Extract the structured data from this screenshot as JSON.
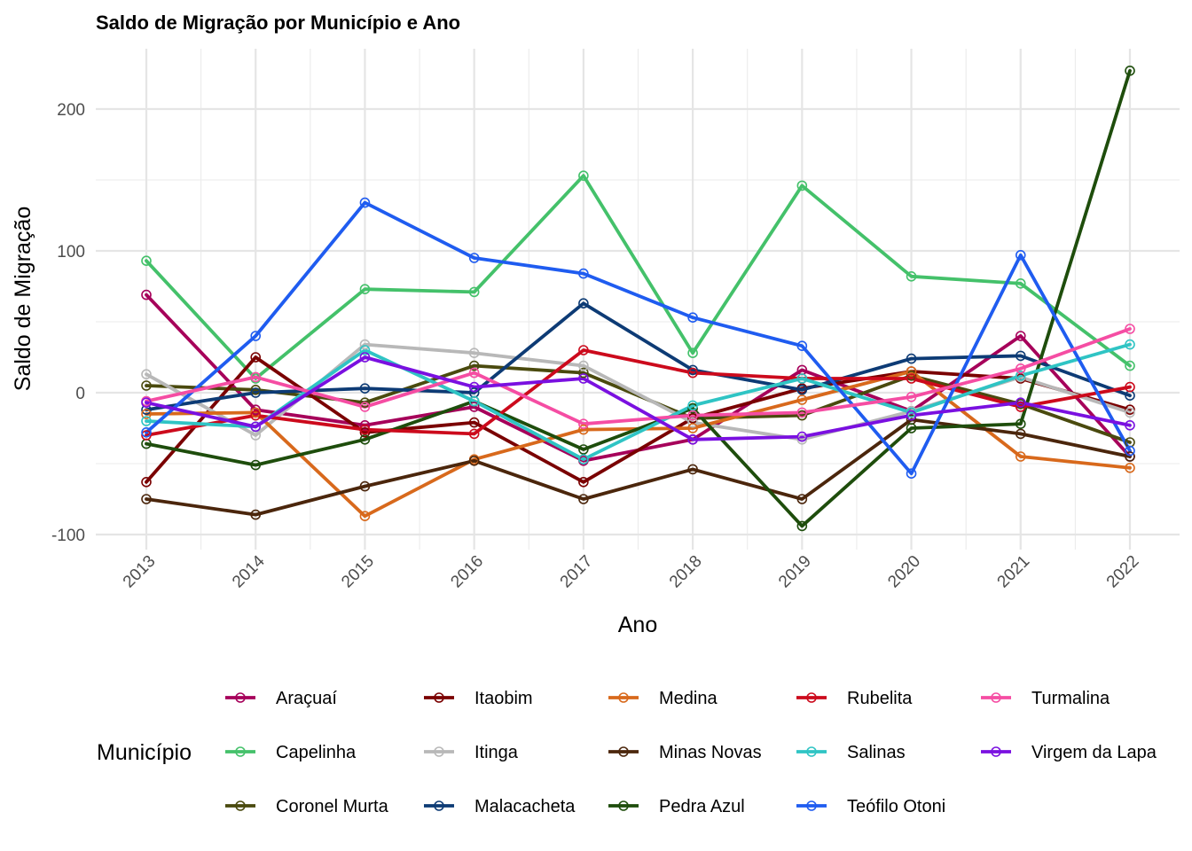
{
  "chart_data": {
    "type": "line",
    "title": "Saldo de Migração por Município e Ano",
    "xlabel": "Ano",
    "ylabel": "Saldo de Migração",
    "x": [
      2013,
      2014,
      2015,
      2016,
      2017,
      2018,
      2019,
      2020,
      2021,
      2022
    ],
    "x_tick_labels": [
      "2013",
      "2014",
      "2015",
      "2016",
      "2017",
      "2018",
      "2019",
      "2020",
      "2021",
      "2022"
    ],
    "y_ticks": [
      -100,
      0,
      100,
      200
    ],
    "y_tick_labels": [
      "-100",
      "0",
      "100",
      "200"
    ],
    "ylim": [
      -112,
      242
    ],
    "grid": true,
    "legend_title": "Município",
    "legend_position": "bottom",
    "series": [
      {
        "name": "Araçuaí",
        "color": "#A6005A",
        "values": [
          69,
          -12,
          -23,
          -10,
          -48,
          -33,
          16,
          -13,
          40,
          -45
        ]
      },
      {
        "name": "Capelinha",
        "color": "#44C16A",
        "values": [
          93,
          10,
          73,
          71,
          153,
          28,
          146,
          82,
          77,
          19
        ]
      },
      {
        "name": "Coronel Murta",
        "color": "#4A4A0E",
        "values": [
          5,
          2,
          -7,
          19,
          14,
          -18,
          -16,
          12,
          -8,
          -35
        ]
      },
      {
        "name": "Itaobim",
        "color": "#7A0000",
        "values": [
          -63,
          25,
          -28,
          -21,
          -63,
          -18,
          3,
          15,
          10,
          -12
        ]
      },
      {
        "name": "Itinga",
        "color": "#B8B8B8",
        "values": [
          13,
          -30,
          34,
          28,
          19,
          -21,
          -33,
          -13,
          11,
          -14
        ]
      },
      {
        "name": "Malacacheta",
        "color": "#0D3B75",
        "values": [
          -12,
          0,
          3,
          0,
          63,
          16,
          2,
          24,
          26,
          -2
        ]
      },
      {
        "name": "Medina",
        "color": "#D8691C",
        "values": [
          -15,
          -14,
          -87,
          -47,
          -26,
          -25,
          -5,
          15,
          -45,
          -53
        ]
      },
      {
        "name": "Minas Novas",
        "color": "#4B260C",
        "values": [
          -75,
          -86,
          -66,
          -48,
          -75,
          -54,
          -75,
          -19,
          -29,
          -45
        ]
      },
      {
        "name": "Pedra Azul",
        "color": "#1E4D0C",
        "values": [
          -36,
          -51,
          -33,
          -6,
          -40,
          -11,
          -94,
          -25,
          -22,
          227
        ]
      },
      {
        "name": "Rubelita",
        "color": "#CC0A1C",
        "values": [
          -30,
          -16,
          -26,
          -29,
          30,
          14,
          10,
          10,
          -10,
          4
        ]
      },
      {
        "name": "Salinas",
        "color": "#2FC4C4",
        "values": [
          -20,
          -24,
          30,
          -6,
          -47,
          -9,
          10,
          -14,
          12,
          34
        ]
      },
      {
        "name": "Teófilo Otoni",
        "color": "#1F5CF0",
        "values": [
          -28,
          40,
          134,
          95,
          84,
          53,
          33,
          -57,
          97,
          -41
        ]
      },
      {
        "name": "Turmalina",
        "color": "#F54DA3",
        "values": [
          -6,
          11,
          -10,
          14,
          -22,
          -16,
          -14,
          -3,
          17,
          45
        ]
      },
      {
        "name": "Virgem da Lapa",
        "color": "#7A10E0",
        "values": [
          -7,
          -24,
          25,
          4,
          10,
          -33,
          -31,
          -16,
          -7,
          -23
        ]
      }
    ]
  }
}
